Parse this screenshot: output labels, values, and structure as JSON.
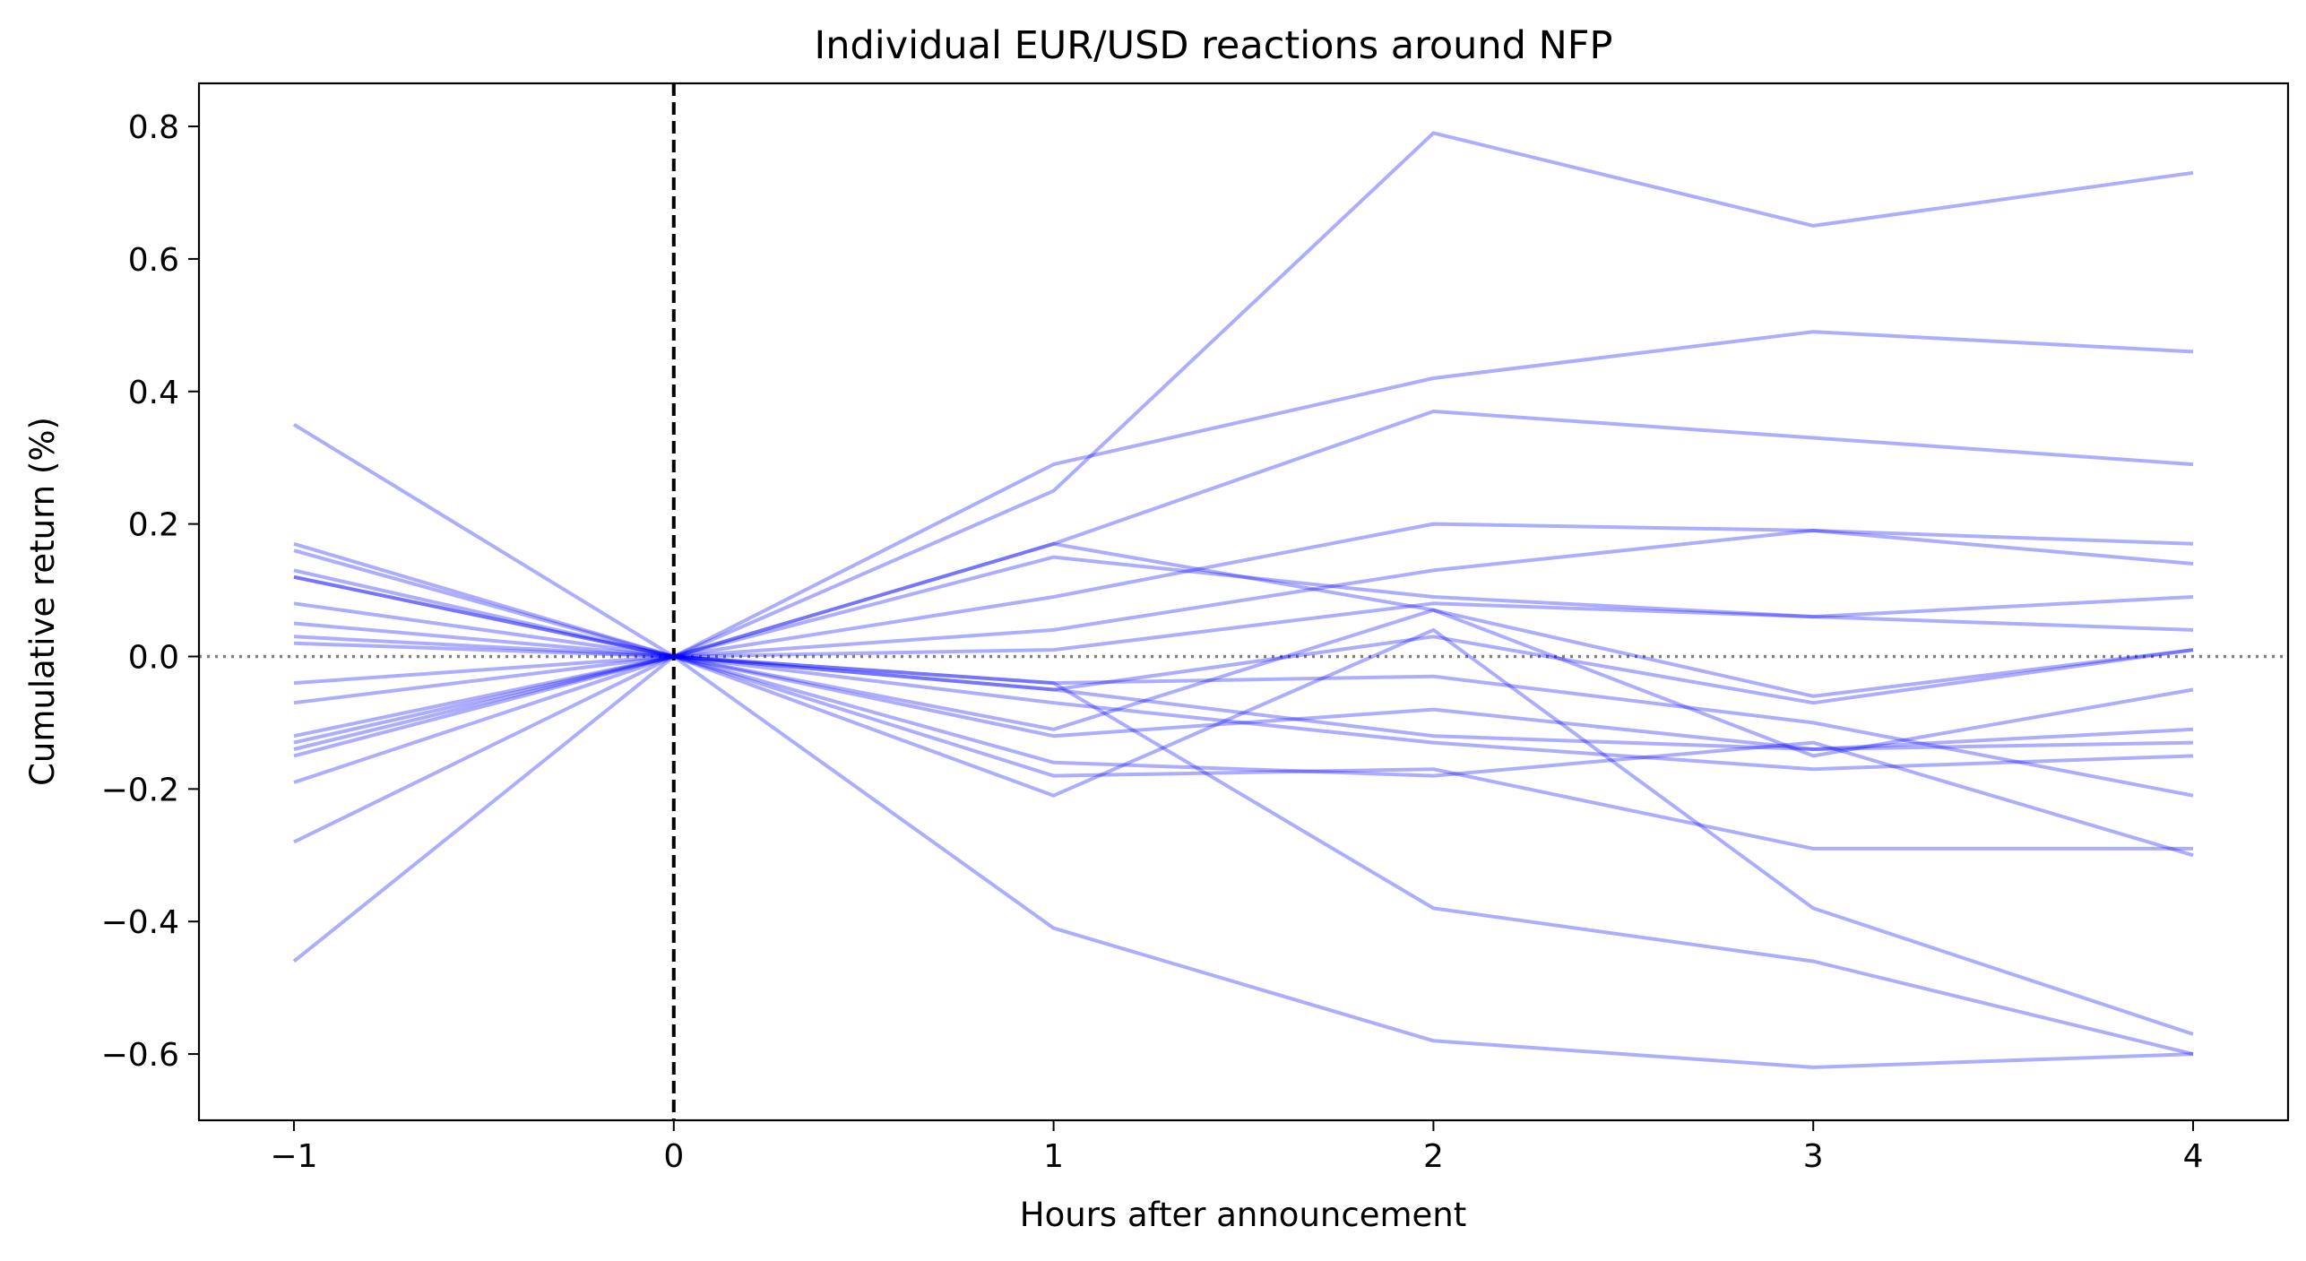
{
  "chart_data": {
    "type": "line",
    "title": "Individual EUR/USD reactions around NFP",
    "xlabel": "Hours after announcement",
    "ylabel": "Cumulative return (%)",
    "x": [
      -1,
      0,
      1,
      2,
      3,
      4
    ],
    "xticks": [
      -1,
      0,
      1,
      2,
      3,
      4
    ],
    "xtick_labels": [
      "−1",
      "0",
      "1",
      "2",
      "3",
      "4"
    ],
    "yticks": [
      -0.6,
      -0.4,
      -0.2,
      0.0,
      0.2,
      0.4,
      0.6,
      0.8
    ],
    "ytick_labels": [
      "−0.6",
      "−0.4",
      "−0.2",
      "0.0",
      "0.2",
      "0.4",
      "0.6",
      "0.8"
    ],
    "xlim": [
      -1.25,
      4.25
    ],
    "ylim": [
      -0.7,
      0.865
    ],
    "grid": false,
    "legend": "none",
    "reference_lines": [
      {
        "orientation": "vertical",
        "value": 0,
        "style": "dashed",
        "color": "#000000"
      },
      {
        "orientation": "horizontal",
        "value": 0,
        "style": "dotted",
        "color": "#808080"
      }
    ],
    "line_color": "#0000ff",
    "line_opacity": 0.32,
    "series": [
      {
        "values": [
          0.12,
          0.0,
          0.25,
          0.79,
          0.65,
          0.73
        ]
      },
      {
        "values": [
          0.17,
          0.0,
          0.29,
          0.42,
          0.49,
          0.46
        ]
      },
      {
        "values": [
          0.16,
          0.0,
          0.17,
          0.37,
          0.33,
          0.29
        ]
      },
      {
        "values": [
          0.05,
          0.0,
          0.09,
          0.2,
          0.19,
          0.17
        ]
      },
      {
        "values": [
          0.08,
          0.0,
          0.04,
          0.13,
          0.19,
          0.14
        ]
      },
      {
        "values": [
          0.13,
          0.0,
          0.01,
          0.08,
          0.06,
          0.09
        ]
      },
      {
        "values": [
          0.02,
          0.0,
          0.15,
          0.09,
          0.06,
          0.04
        ]
      },
      {
        "values": [
          0.12,
          0.0,
          -0.05,
          0.03,
          -0.07,
          0.01
        ]
      },
      {
        "values": [
          0.35,
          0.0,
          0.17,
          0.07,
          -0.06,
          0.01
        ]
      },
      {
        "values": [
          -0.04,
          0.0,
          -0.04,
          -0.03,
          -0.1,
          -0.21
        ]
      },
      {
        "values": [
          -0.07,
          0.0,
          -0.11,
          0.07,
          -0.15,
          -0.05
        ]
      },
      {
        "values": [
          -0.15,
          0.0,
          -0.12,
          -0.08,
          -0.14,
          -0.11
        ]
      },
      {
        "values": [
          -0.12,
          0.0,
          -0.05,
          -0.12,
          -0.14,
          -0.13
        ]
      },
      {
        "values": [
          -0.14,
          0.0,
          -0.07,
          -0.13,
          -0.17,
          -0.15
        ]
      },
      {
        "values": [
          -0.13,
          0.0,
          -0.18,
          -0.17,
          -0.29,
          -0.29
        ]
      },
      {
        "values": [
          -0.28,
          0.0,
          -0.16,
          -0.18,
          -0.13,
          -0.3
        ]
      },
      {
        "values": [
          0.03,
          0.0,
          -0.21,
          0.04,
          -0.38,
          -0.57
        ]
      },
      {
        "values": [
          -0.19,
          0.0,
          -0.04,
          -0.38,
          -0.46,
          -0.6
        ]
      },
      {
        "values": [
          -0.46,
          0.0,
          -0.41,
          -0.58,
          -0.62,
          -0.6
        ]
      }
    ]
  }
}
